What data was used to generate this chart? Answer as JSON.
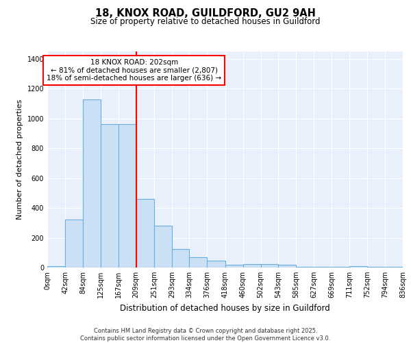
{
  "title": "18, KNOX ROAD, GUILDFORD, GU2 9AH",
  "subtitle": "Size of property relative to detached houses in Guildford",
  "xlabel": "Distribution of detached houses by size in Guildford",
  "ylabel": "Number of detached properties",
  "bar_color": "#cce0f5",
  "bar_edge_color": "#6aaee0",
  "bins": [
    0,
    42,
    84,
    125,
    167,
    209,
    251,
    293,
    334,
    376,
    418,
    460,
    502,
    543,
    585,
    627,
    669,
    711,
    752,
    794,
    836
  ],
  "values": [
    10,
    320,
    1130,
    960,
    960,
    460,
    280,
    125,
    68,
    45,
    20,
    25,
    25,
    20,
    5,
    5,
    5,
    10,
    5,
    5
  ],
  "red_line_x": 209,
  "annotation_line1": "18 KNOX ROAD: 202sqm",
  "annotation_line2": "← 81% of detached houses are smaller (2,807)",
  "annotation_line3": "18% of semi-detached houses are larger (636) →",
  "ylim": [
    0,
    1450
  ],
  "yticks": [
    0,
    200,
    400,
    600,
    800,
    1000,
    1200,
    1400
  ],
  "tick_labels": [
    "0sqm",
    "42sqm",
    "84sqm",
    "125sqm",
    "167sqm",
    "209sqm",
    "251sqm",
    "293sqm",
    "334sqm",
    "376sqm",
    "418sqm",
    "460sqm",
    "502sqm",
    "543sqm",
    "585sqm",
    "627sqm",
    "669sqm",
    "711sqm",
    "752sqm",
    "794sqm",
    "836sqm"
  ],
  "background_color": "#e8f0fc",
  "grid_color": "#ffffff",
  "footer_line1": "Contains HM Land Registry data © Crown copyright and database right 2025.",
  "footer_line2": "Contains public sector information licensed under the Open Government Licence v3.0."
}
